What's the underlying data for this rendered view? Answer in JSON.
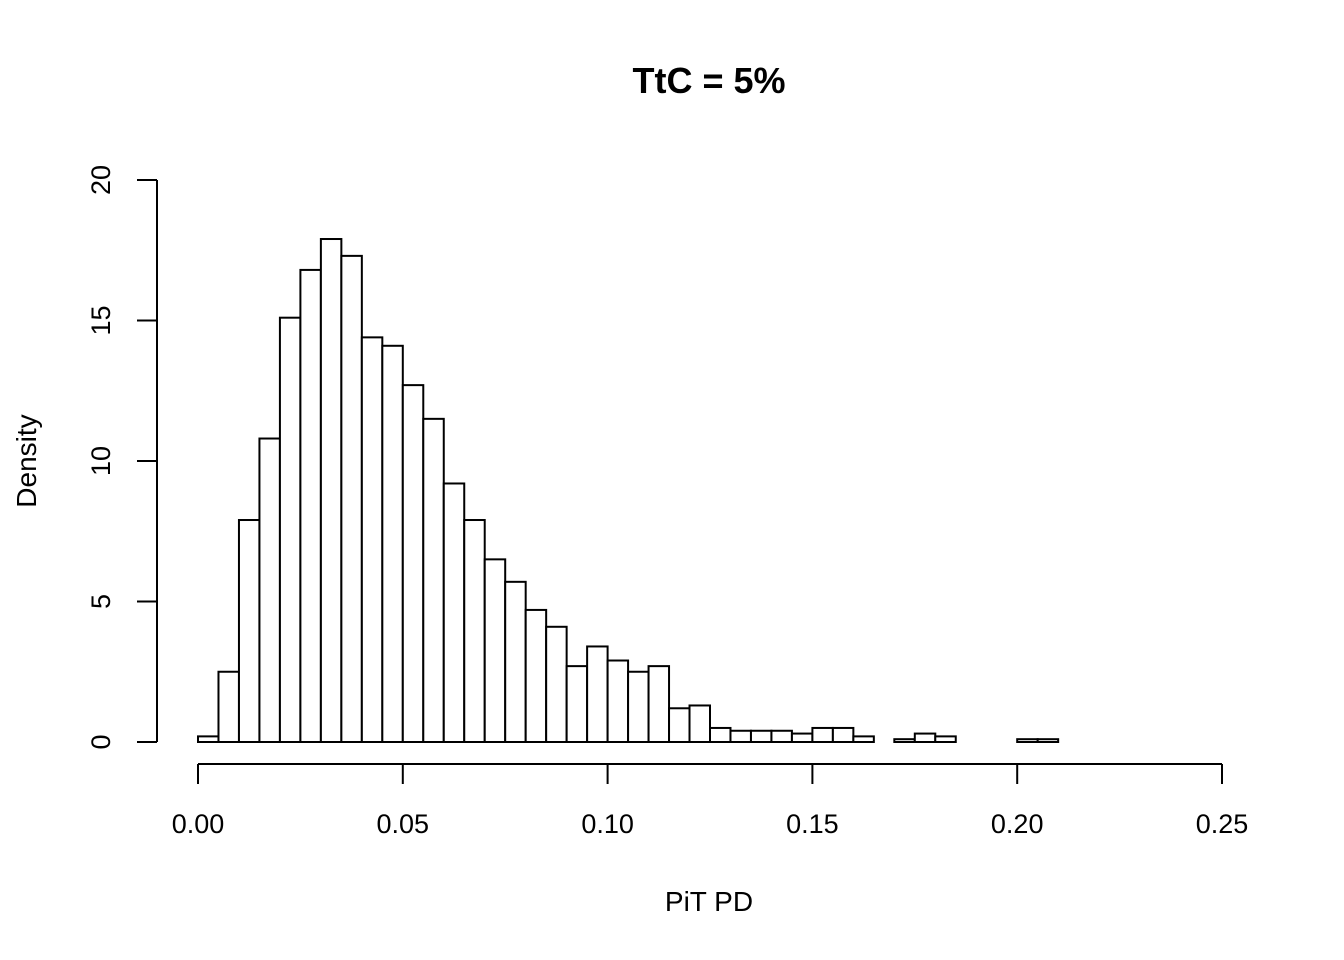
{
  "chart_data": {
    "type": "bar",
    "title": "TtC = 5%",
    "xlabel": "PiT PD",
    "ylabel": "Density",
    "xlim": [
      0,
      0.25
    ],
    "ylim": [
      0,
      20
    ],
    "x_ticks": [
      "0.00",
      "0.05",
      "0.10",
      "0.15",
      "0.20",
      "0.25"
    ],
    "y_ticks": [
      "0",
      "5",
      "10",
      "15",
      "20"
    ],
    "bin_width": 0.005,
    "bins_start": [
      0.0,
      0.005,
      0.01,
      0.015,
      0.02,
      0.025,
      0.03,
      0.035,
      0.04,
      0.045,
      0.05,
      0.055,
      0.06,
      0.065,
      0.07,
      0.075,
      0.08,
      0.085,
      0.09,
      0.095,
      0.1,
      0.105,
      0.11,
      0.115,
      0.12,
      0.125,
      0.13,
      0.135,
      0.14,
      0.145,
      0.15,
      0.155,
      0.16,
      0.165,
      0.17,
      0.175,
      0.18,
      0.185,
      0.19,
      0.195,
      0.2,
      0.205
    ],
    "values": [
      0.2,
      2.5,
      7.9,
      10.8,
      15.1,
      16.8,
      17.9,
      17.3,
      14.4,
      14.1,
      12.7,
      11.5,
      9.2,
      7.9,
      6.5,
      5.7,
      4.7,
      4.1,
      2.7,
      3.4,
      2.9,
      2.5,
      2.7,
      1.2,
      1.3,
      0.5,
      0.4,
      0.4,
      0.4,
      0.3,
      0.5,
      0.5,
      0.2,
      0.0,
      0.1,
      0.3,
      0.2,
      0.0,
      0.0,
      0.0,
      0.1,
      0.1
    ],
    "grid": false,
    "legend": false
  }
}
